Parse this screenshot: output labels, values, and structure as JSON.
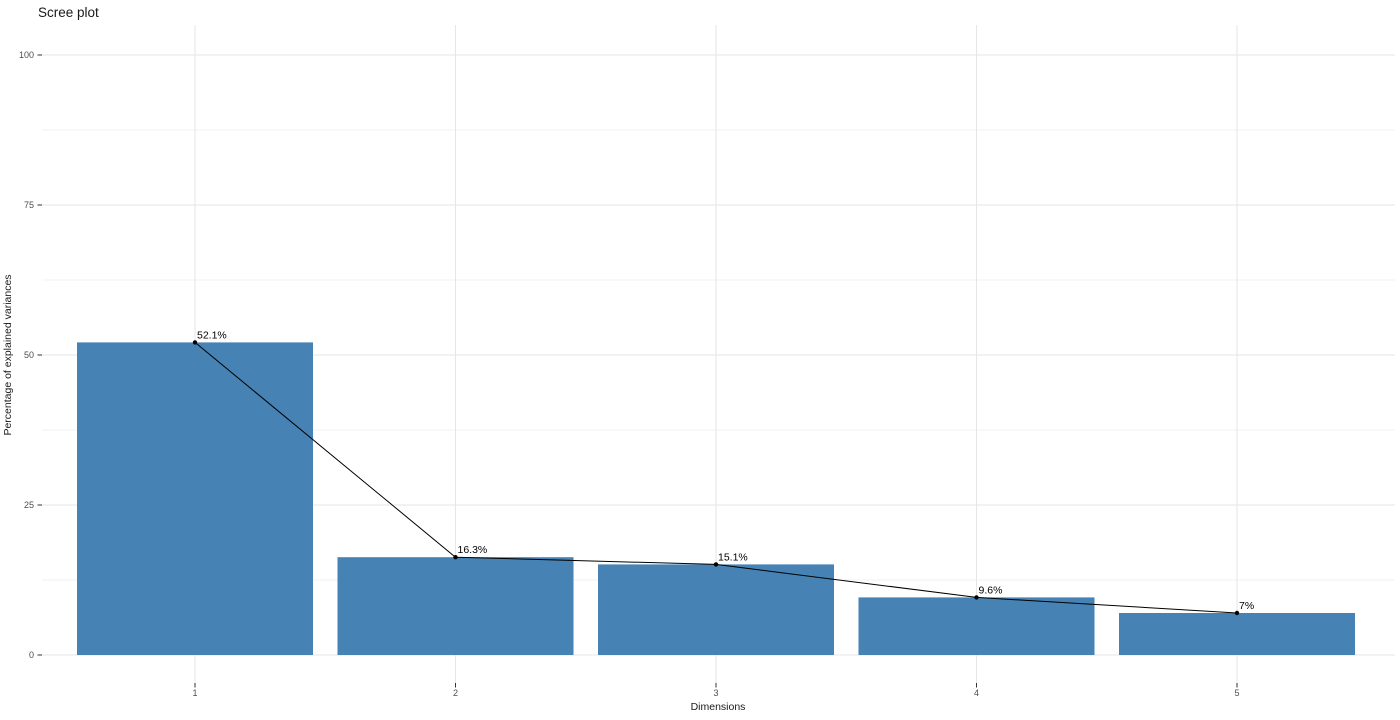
{
  "chart_data": {
    "type": "bar",
    "overlay": "line-with-points",
    "title": "Scree plot",
    "xlabel": "Dimensions",
    "ylabel": "Percentage of explained variances",
    "categories": [
      "1",
      "2",
      "3",
      "4",
      "5"
    ],
    "values": [
      52.1,
      16.3,
      15.1,
      9.6,
      7
    ],
    "point_labels": [
      "52.1%",
      "16.3%",
      "15.1%",
      "9.6%",
      "7%"
    ],
    "ylim": [
      0,
      100
    ],
    "yticks": [
      0,
      25,
      50,
      75,
      100
    ],
    "grid": "major-and-minor-horizontal, major-vertical",
    "legend": "none",
    "colors": {
      "bar_fill": "#4682B4",
      "line": "#000000",
      "point": "#000000",
      "grid_major": "#e6e6e6",
      "grid_minor": "#f2f2f2",
      "axis_text": "#4d4d4d",
      "tick_mark": "#333333",
      "title_text": "#1a1a1a",
      "background": "#ffffff"
    }
  }
}
